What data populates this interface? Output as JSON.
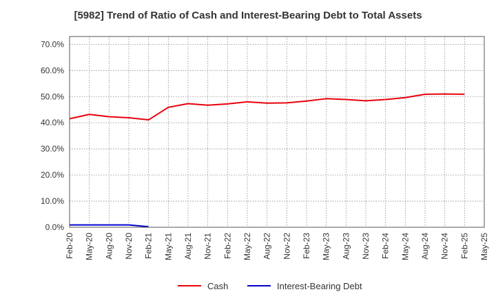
{
  "chart_data": {
    "type": "line",
    "title": "[5982]  Trend of Ratio of Cash and Interest-Bearing Debt to Total Assets",
    "xlabel": "",
    "ylabel": "",
    "categories": [
      "Feb-20",
      "May-20",
      "Aug-20",
      "Nov-20",
      "Feb-21",
      "May-21",
      "Aug-21",
      "Nov-21",
      "Feb-22",
      "May-22",
      "Aug-22",
      "Nov-22",
      "Feb-23",
      "May-23",
      "Aug-23",
      "Nov-23",
      "Feb-24",
      "May-24",
      "Aug-24",
      "Nov-24",
      "Feb-25",
      "May-25"
    ],
    "y_ticks": [
      "0.0%",
      "10.0%",
      "20.0%",
      "30.0%",
      "40.0%",
      "50.0%",
      "60.0%",
      "70.0%"
    ],
    "ylim": [
      0,
      73
    ],
    "grid": true,
    "legend_position": "bottom",
    "series": [
      {
        "name": "Cash",
        "color": "#e8000b",
        "values": [
          41.5,
          43.2,
          42.3,
          41.9,
          41.1,
          45.9,
          47.3,
          46.7,
          47.2,
          48.0,
          47.5,
          47.6,
          48.3,
          49.2,
          48.9,
          48.4,
          48.9,
          49.6,
          50.9,
          51.0,
          50.9,
          null
        ]
      },
      {
        "name": "Interest-Bearing Debt",
        "color": "#0000cc",
        "values": [
          0.9,
          0.9,
          0.9,
          0.9,
          0.2,
          null,
          null,
          null,
          null,
          null,
          null,
          null,
          null,
          null,
          null,
          null,
          null,
          null,
          null,
          null,
          null,
          null
        ]
      }
    ]
  }
}
